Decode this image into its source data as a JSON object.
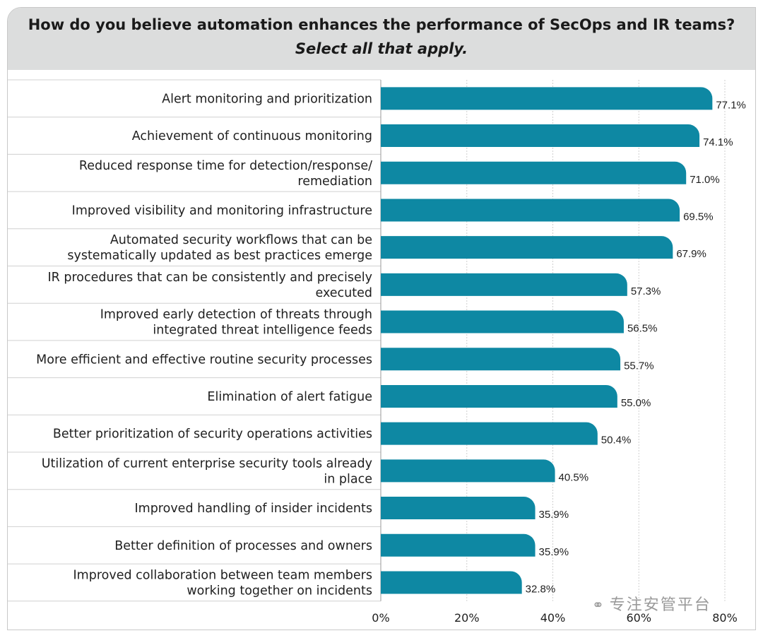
{
  "header": {
    "title": "How do you believe automation enhances the performance of SecOps and IR teams?",
    "subtitle": "Select all that apply."
  },
  "watermark": {
    "text": "专注安管平台",
    "icon": "wechat-icon"
  },
  "colors": {
    "bar": "#0e88a3",
    "header_bg": "#dcdddd",
    "row_line": "#d0d0d0",
    "grid_line": "#cfcfcf"
  },
  "chart_data": {
    "type": "bar",
    "orientation": "horizontal",
    "title": "How do you believe automation enhances the performance of SecOps and IR teams?",
    "subtitle": "Select all that apply.",
    "categories": [
      [
        "Alert monitoring and prioritization"
      ],
      [
        "Achievement of continuous monitoring"
      ],
      [
        "Reduced response time for detection/response/",
        "remediation"
      ],
      [
        "Improved visibility and monitoring infrastructure"
      ],
      [
        "Automated security workflows that can be",
        "systematically updated as best practices emerge"
      ],
      [
        "IR procedures that can be consistently and precisely",
        "executed"
      ],
      [
        "Improved early detection of threats through",
        "integrated threat intelligence feeds"
      ],
      [
        "More efficient and effective routine security processes"
      ],
      [
        "Elimination of alert fatigue"
      ],
      [
        "Better prioritization of security operations activities"
      ],
      [
        "Utilization of current enterprise security tools already",
        "in place"
      ],
      [
        "Improved handling of insider incidents"
      ],
      [
        "Better definition of processes and owners"
      ],
      [
        "Improved collaboration between team members",
        "working together on incidents"
      ]
    ],
    "values": [
      77.1,
      74.1,
      71.0,
      69.5,
      67.9,
      57.3,
      56.5,
      55.7,
      55.0,
      50.4,
      40.5,
      35.9,
      35.9,
      32.8
    ],
    "value_labels": [
      "77.1%",
      "74.1%",
      "71.0%",
      "69.5%",
      "67.9%",
      "57.3%",
      "56.5%",
      "55.7%",
      "55.0%",
      "50.4%",
      "40.5%",
      "35.9%",
      "35.9%",
      "32.8%"
    ],
    "xlim": [
      0,
      80
    ],
    "xticks": [
      0,
      20,
      40,
      60,
      80
    ],
    "xtick_labels": [
      "0%",
      "20%",
      "40%",
      "60%",
      "80%"
    ],
    "grid": true,
    "legend": "none"
  }
}
